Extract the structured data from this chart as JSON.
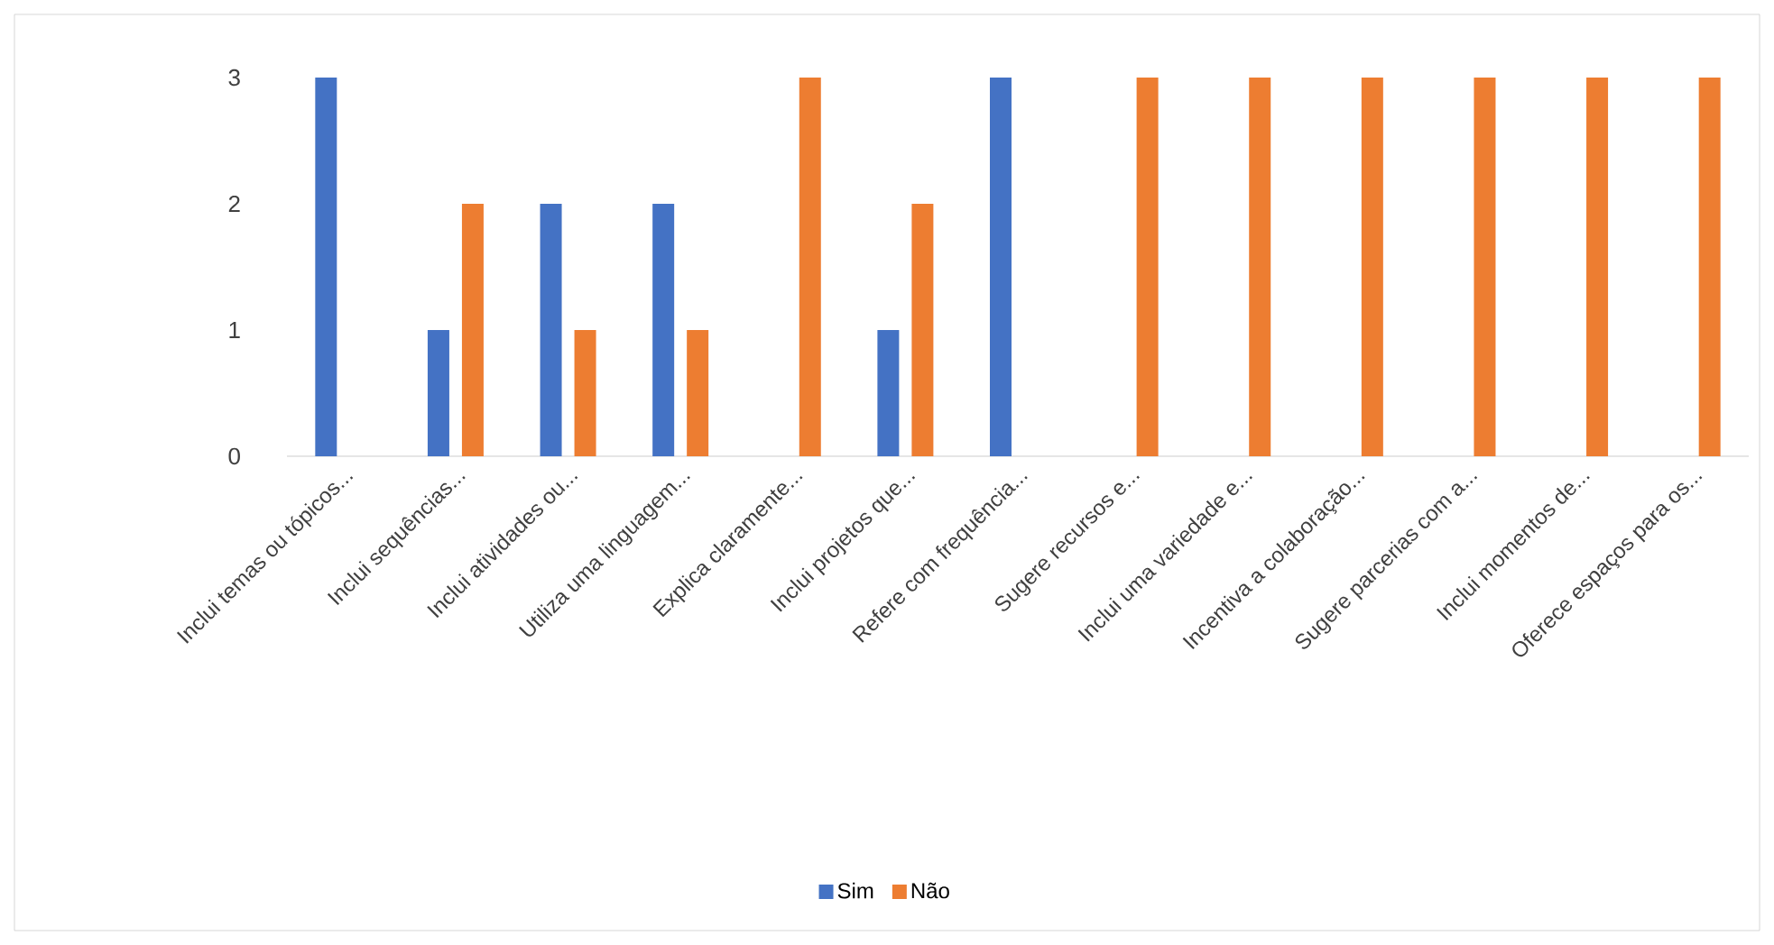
{
  "chart_data": {
    "type": "bar",
    "categories": [
      "Inclui temas ou tópicos...",
      "Inclui sequências...",
      "Inclui atividades ou...",
      "Utiliza uma linguagem...",
      "Explica claramente...",
      "Inclui projetos que...",
      "Refere com frequência...",
      "Sugere recursos e...",
      "Inclui uma variedade e...",
      "Incentiva a colaboração...",
      "Sugere parcerias com a...",
      "Inclui momentos de...",
      "Oferece espaços para os..."
    ],
    "series": [
      {
        "name": "Sim",
        "color": "#4472c4",
        "values": [
          3,
          1,
          2,
          2,
          0,
          1,
          3,
          0,
          0,
          0,
          0,
          0,
          0
        ]
      },
      {
        "name": "Não",
        "color": "#ed7d31",
        "values": [
          0,
          2,
          1,
          1,
          3,
          2,
          0,
          3,
          3,
          3,
          3,
          3,
          3
        ]
      }
    ],
    "ylim": [
      0,
      3
    ],
    "yticks": [
      0,
      1,
      2,
      3
    ],
    "legend": "bottom"
  }
}
